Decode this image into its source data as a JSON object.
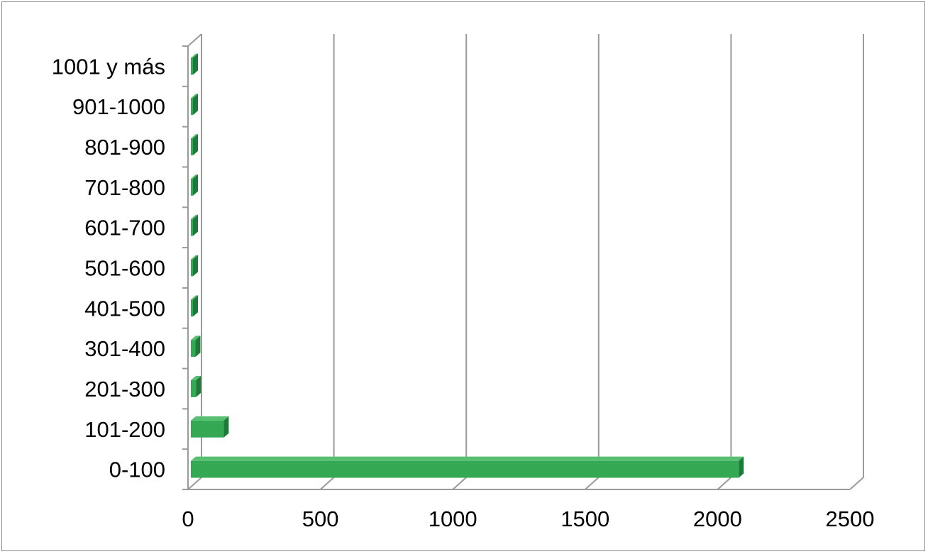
{
  "chart_data": {
    "type": "bar",
    "orientation": "horizontal",
    "style": "3d-clustered-bar",
    "categories": [
      "0-100",
      "101-200",
      "201-300",
      "301-400",
      "401-500",
      "501-600",
      "601-700",
      "701-800",
      "801-900",
      "901-1000",
      "1001 y más"
    ],
    "values": [
      2080,
      135,
      30,
      28,
      15,
      8,
      6,
      5,
      5,
      4,
      4
    ],
    "xlim": [
      0,
      2500
    ],
    "xticks": [
      "0",
      "500",
      "1000",
      "1500",
      "2000",
      "2500"
    ],
    "grid": true,
    "legend": "none",
    "title": "",
    "xlabel": "",
    "ylabel": "",
    "colors": {
      "bar_front": "#35a853",
      "bar_top": "#58c070",
      "bar_side": "#1e7a3a",
      "grid": "#9a9a9a",
      "frame": "#8c8c8c"
    }
  }
}
